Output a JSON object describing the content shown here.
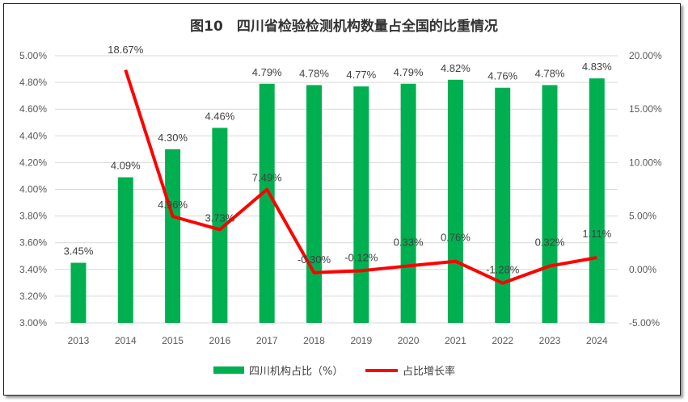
{
  "chart_data": {
    "type": "bar+line",
    "title": "图10　四川省检验检测机构数量占全国的比重情况",
    "categories": [
      "2013",
      "2014",
      "2015",
      "2016",
      "2017",
      "2018",
      "2019",
      "2020",
      "2021",
      "2022",
      "2023",
      "2024"
    ],
    "series": [
      {
        "name": "四川机构占比（%）",
        "type": "bar",
        "axis": "left",
        "color": "#00b050",
        "values": [
          3.45,
          4.09,
          4.3,
          4.46,
          4.79,
          4.78,
          4.77,
          4.79,
          4.82,
          4.76,
          4.78,
          4.83
        ],
        "labels": [
          "3.45%",
          "4.09%",
          "4.30%",
          "4.46%",
          "4.79%",
          "4.78%",
          "4.77%",
          "4.79%",
          "4.82%",
          "4.76%",
          "4.78%",
          "4.83%"
        ]
      },
      {
        "name": "占比增长率",
        "type": "line",
        "axis": "right",
        "color": "#ff0000",
        "values": [
          null,
          18.67,
          4.96,
          3.73,
          7.49,
          -0.3,
          -0.12,
          0.33,
          0.76,
          -1.28,
          0.32,
          1.11
        ],
        "labels": [
          null,
          "18.67%",
          "4.96%",
          "3.73%",
          "7.49%",
          "-0.30%",
          "-0.12%",
          "0.33%",
          "0.76%",
          "-1.28%",
          "0.32%",
          "1.11%"
        ]
      }
    ],
    "left_axis": {
      "ylim": [
        3.0,
        5.0
      ],
      "ticks": [
        "3.00%",
        "3.20%",
        "3.40%",
        "3.60%",
        "3.80%",
        "4.00%",
        "4.20%",
        "4.40%",
        "4.60%",
        "4.80%",
        "5.00%"
      ]
    },
    "right_axis": {
      "ylim": [
        -5,
        20
      ],
      "ticks": [
        "-5.00%",
        "0.00%",
        "5.00%",
        "10.00%",
        "15.00%",
        "20.00%"
      ]
    },
    "grid": true,
    "legend": "bottom"
  }
}
